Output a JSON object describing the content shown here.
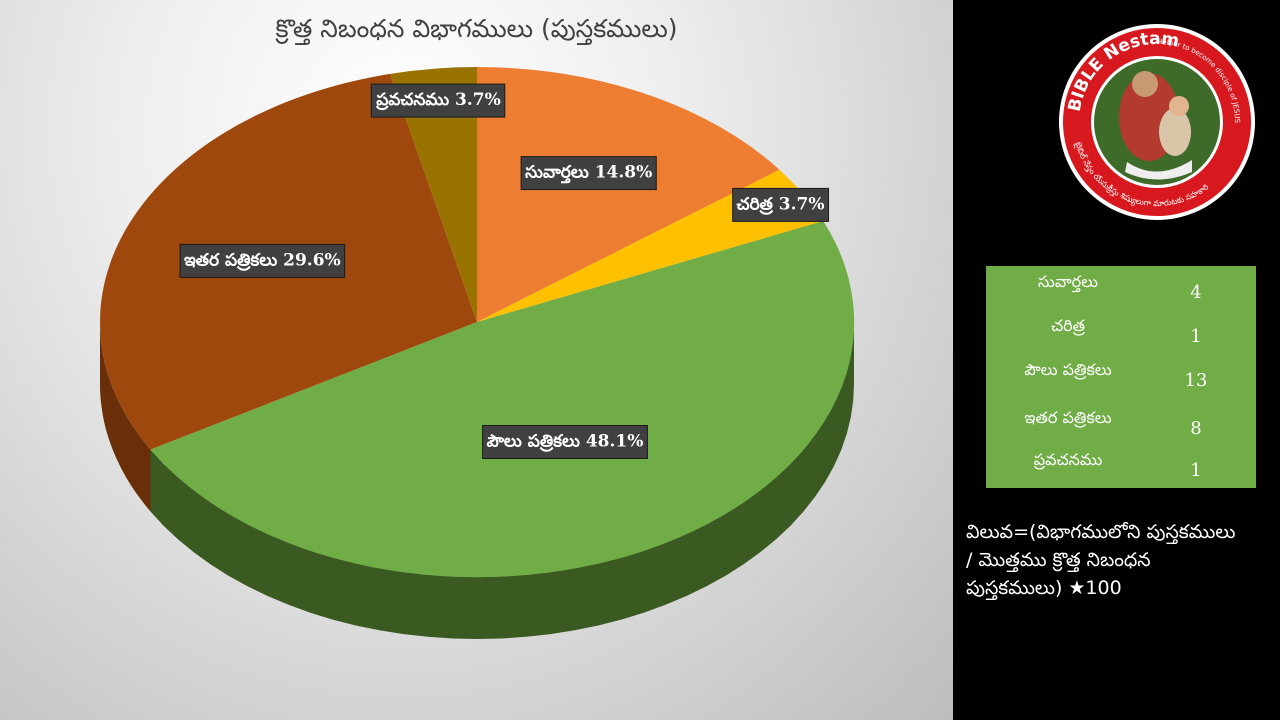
{
  "chart_data": {
    "type": "pie",
    "title": "క్రొత్త నిబంధన విభాగములు (పుస్తకములు)",
    "categories": [
      "సువార్తలు",
      "చరిత్ర",
      "పౌలు పత్రికలు",
      "ఇతర పత్రికలు",
      "ప్రవచనము"
    ],
    "values": [
      4,
      1,
      13,
      8,
      1
    ],
    "percent_labels": [
      "సువార్తలు 14.8%",
      "చరిత్ర 3.7%",
      "పౌలు పత్రికలు 48.1%",
      "ఇతర పత్రికలు 29.6%",
      "ప్రవచనము 3.7%"
    ],
    "colors": [
      "#ed7d31",
      "#ffc000",
      "#70ad47",
      "#9e480e",
      "#997300"
    ],
    "side_colors": [
      "#a85a22",
      "#b38700",
      "#3a5a22",
      "#6a2f09",
      "#665000"
    ]
  },
  "table": {
    "rows": [
      {
        "name": "సువార్తలు",
        "value": "4"
      },
      {
        "name": "చరిత్ర",
        "value": "1"
      },
      {
        "name": "పౌలు పత్రికలు",
        "value": "13"
      },
      {
        "name": "ఇతర పత్రికలు",
        "value": "8"
      },
      {
        "name": "ప్రవచనము",
        "value": "1"
      }
    ]
  },
  "formula": {
    "line1": "విలువ=(విభాగములోని పుస్తకములు",
    "line2": "/ మొత్తము క్రొత్త నిబంధన",
    "line3": "పుస్తకములు) ★100"
  },
  "logo": {
    "brand": "BIBLE Nestam",
    "tagline": "Helper to become disciple of JESUS CHRIST",
    "telugu": "బైబిల్ నేస్తం యేసుక్రీస్తు శిష్యులుగా మారుటకు సహకారి"
  }
}
